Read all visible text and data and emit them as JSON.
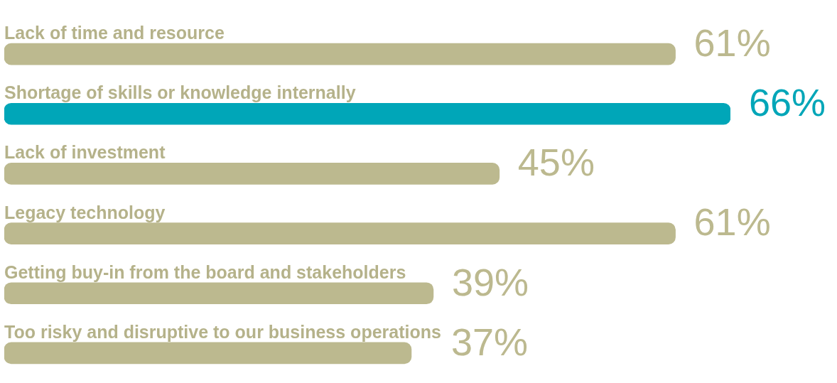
{
  "chart_data": {
    "type": "bar",
    "orientation": "horizontal",
    "categories": [
      "Lack of time and resource",
      "Shortage of skills or knowledge internally",
      "Lack of investment",
      "Legacy technology",
      "Getting buy-in from the board and stakeholders",
      "Too risky and disruptive to our business operations"
    ],
    "values": [
      61,
      66,
      45,
      61,
      39,
      37
    ],
    "colors": [
      "#bcb98f",
      "#00a6b8",
      "#bcb98f",
      "#bcb98f",
      "#bcb98f",
      "#bcb98f"
    ],
    "value_labels": [
      "61%",
      "66%",
      "45%",
      "61%",
      "39%",
      "37%"
    ],
    "xlim": [
      0,
      66
    ],
    "tick_labels": "y"
  }
}
